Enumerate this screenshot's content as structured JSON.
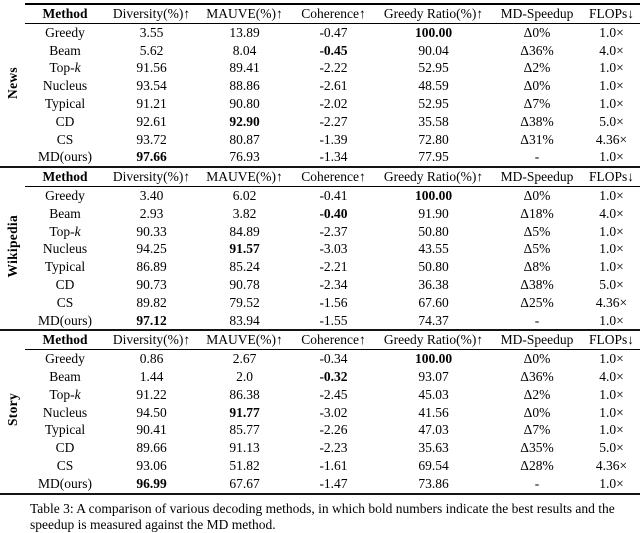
{
  "table": {
    "columns": [
      "Method",
      "Diversity(%)↑",
      "MAUVE(%)↑",
      "Coherence↑",
      "Greedy Ratio(%)↑",
      "MD-Speedup",
      "FLOPs↓"
    ],
    "sections": [
      {
        "label": "News",
        "rows": [
          {
            "method": "Greedy",
            "cells": [
              "3.55",
              "13.89",
              "-0.47",
              "100.00",
              "Δ0%",
              "1.0×"
            ],
            "bold": [
              3
            ]
          },
          {
            "method": "Beam",
            "cells": [
              "5.62",
              "8.04",
              "-0.45",
              "90.04",
              "Δ36%",
              "4.0×"
            ],
            "bold": [
              2
            ]
          },
          {
            "method": "Top-k",
            "cells": [
              "91.56",
              "89.41",
              "-2.22",
              "52.95",
              "Δ2%",
              "1.0×"
            ],
            "bold": []
          },
          {
            "method": "Nucleus",
            "cells": [
              "93.54",
              "88.86",
              "-2.61",
              "48.59",
              "Δ0%",
              "1.0×"
            ],
            "bold": []
          },
          {
            "method": "Typical",
            "cells": [
              "91.21",
              "90.80",
              "-2.02",
              "52.95",
              "Δ7%",
              "1.0×"
            ],
            "bold": []
          },
          {
            "method": "CD",
            "cells": [
              "92.61",
              "92.90",
              "-2.27",
              "35.58",
              "Δ38%",
              "5.0×"
            ],
            "bold": [
              1
            ]
          },
          {
            "method": "CS",
            "cells": [
              "93.72",
              "80.87",
              "-1.39",
              "72.80",
              "Δ31%",
              "4.36×"
            ],
            "bold": []
          },
          {
            "method": "MD(ours)",
            "cells": [
              "97.66",
              "76.93",
              "-1.34",
              "77.95",
              "-",
              "1.0×"
            ],
            "bold": [
              0
            ]
          }
        ]
      },
      {
        "label": "Wikipedia",
        "rows": [
          {
            "method": "Greedy",
            "cells": [
              "3.40",
              "6.02",
              "-0.41",
              "100.00",
              "Δ0%",
              "1.0×"
            ],
            "bold": [
              3
            ]
          },
          {
            "method": "Beam",
            "cells": [
              "2.93",
              "3.82",
              "-0.40",
              "91.90",
              "Δ18%",
              "4.0×"
            ],
            "bold": [
              2
            ]
          },
          {
            "method": "Top-k",
            "cells": [
              "90.33",
              "84.89",
              "-2.37",
              "50.80",
              "Δ5%",
              "1.0×"
            ],
            "bold": []
          },
          {
            "method": "Nucleus",
            "cells": [
              "94.25",
              "91.57",
              "-3.03",
              "43.55",
              "Δ5%",
              "1.0×"
            ],
            "bold": [
              1
            ]
          },
          {
            "method": "Typical",
            "cells": [
              "86.89",
              "85.24",
              "-2.21",
              "50.80",
              "Δ8%",
              "1.0×"
            ],
            "bold": []
          },
          {
            "method": "CD",
            "cells": [
              "90.73",
              "90.78",
              "-2.34",
              "36.38",
              "Δ38%",
              "5.0×"
            ],
            "bold": []
          },
          {
            "method": "CS",
            "cells": [
              "89.82",
              "79.52",
              "-1.56",
              "67.60",
              "Δ25%",
              "4.36×"
            ],
            "bold": []
          },
          {
            "method": "MD(ours)",
            "cells": [
              "97.12",
              "83.94",
              "-1.55",
              "74.37",
              "-",
              "1.0×"
            ],
            "bold": [
              0
            ]
          }
        ]
      },
      {
        "label": "Story",
        "rows": [
          {
            "method": "Greedy",
            "cells": [
              "0.86",
              "2.67",
              "-0.34",
              "100.00",
              "Δ0%",
              "1.0×"
            ],
            "bold": [
              3
            ]
          },
          {
            "method": "Beam",
            "cells": [
              "1.44",
              "2.0",
              "-0.32",
              "93.07",
              "Δ36%",
              "4.0×"
            ],
            "bold": [
              2
            ]
          },
          {
            "method": "Top-k",
            "cells": [
              "91.22",
              "86.38",
              "-2.45",
              "45.03",
              "Δ2%",
              "1.0×"
            ],
            "bold": []
          },
          {
            "method": "Nucleus",
            "cells": [
              "94.50",
              "91.77",
              "-3.02",
              "41.56",
              "Δ0%",
              "1.0×"
            ],
            "bold": [
              1
            ]
          },
          {
            "method": "Typical",
            "cells": [
              "90.41",
              "85.77",
              "-2.26",
              "47.03",
              "Δ7%",
              "1.0×"
            ],
            "bold": []
          },
          {
            "method": "CD",
            "cells": [
              "89.66",
              "91.13",
              "-2.23",
              "35.63",
              "Δ35%",
              "5.0×"
            ],
            "bold": []
          },
          {
            "method": "CS",
            "cells": [
              "93.06",
              "51.82",
              "-1.61",
              "69.54",
              "Δ28%",
              "4.36×"
            ],
            "bold": []
          },
          {
            "method": "MD(ours)",
            "cells": [
              "96.99",
              "67.67",
              "-1.47",
              "73.86",
              "-",
              "1.0×"
            ],
            "bold": [
              0
            ]
          }
        ]
      }
    ]
  },
  "caption": "Table 3: A comparison of various decoding methods, in which bold numbers indicate the best results and the speedup is measured against the MD method."
}
